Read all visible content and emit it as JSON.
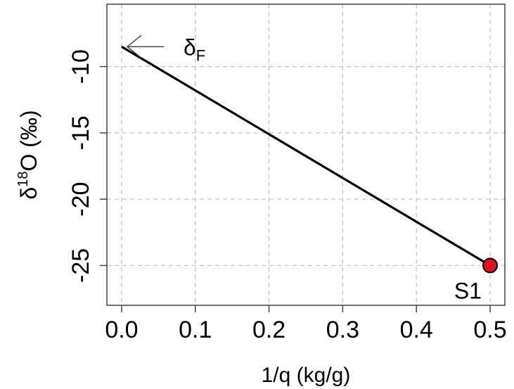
{
  "chart_data": {
    "type": "line",
    "title": "",
    "xlabel": "1/q (kg/g)",
    "ylabel": {
      "prefix": "δ",
      "superscript": "18",
      "main": "O (‰)"
    },
    "xlim": [
      -0.02,
      0.52
    ],
    "ylim": [
      -28,
      -5.3
    ],
    "x_ticks": [
      0.0,
      0.1,
      0.2,
      0.3,
      0.4,
      0.5
    ],
    "x_tick_labels": [
      "0.0",
      "0.1",
      "0.2",
      "0.3",
      "0.4",
      "0.5"
    ],
    "y_ticks": [
      -10,
      -15,
      -20,
      -25
    ],
    "y_tick_labels": [
      "-10",
      "-15",
      "-20",
      "-25"
    ],
    "grid": true,
    "series": [
      {
        "values": [
          {
            "x": 0.0,
            "y": -8.5
          },
          {
            "x": 0.5,
            "y": -25
          }
        ],
        "color": "#000000"
      }
    ],
    "points": [
      {
        "x": 0.5,
        "y": -25,
        "label": "S1",
        "color": "#e0141c"
      }
    ],
    "annotations": [
      {
        "x": 0.0,
        "y": -8.5,
        "label_main": "δ",
        "label_sub": "F",
        "arrow": true
      }
    ]
  }
}
